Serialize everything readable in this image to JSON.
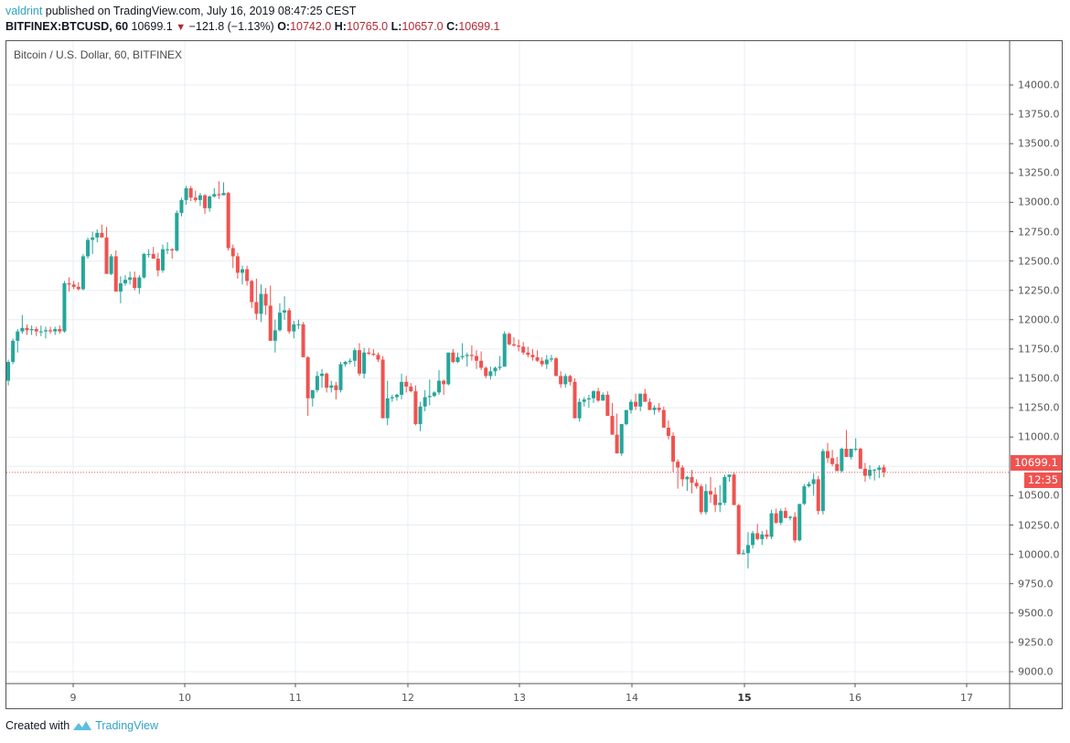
{
  "header": {
    "author": "valdrint",
    "published_text": "published on TradingView.com, July 16, 2019 08:47:25 CEST",
    "symbol": "BITFINEX:BTCUSD, 60",
    "last": "10699.1",
    "change": "−121.8 (−1.13%)",
    "o_label": "O:",
    "o": "10742.0",
    "h_label": "H:",
    "h": "10765.0",
    "l_label": "L:",
    "l": "10657.0",
    "c_label": "C:",
    "c": "10699.1"
  },
  "legend": "Bitcoin / U.S. Dollar, 60, BITFINEX",
  "last_price_tag": "10699.1",
  "countdown_tag": "12:35",
  "footer": {
    "created_with": "Created with",
    "brand": "TradingView"
  },
  "colors": {
    "up": "#26a69a",
    "down": "#ef5350",
    "grid": "#e8eef3",
    "axis": "#555555",
    "brand": "#2fa3c8"
  },
  "chart_data": {
    "type": "candlestick",
    "title": "Bitcoin / U.S. Dollar, 60, BITFINEX",
    "xlabel": "",
    "ylabel": "",
    "ylim": [
      8800,
      14250
    ],
    "grid": true,
    "price_ticks": [
      "14000.0",
      "13750.0",
      "13500.0",
      "13250.0",
      "13000.0",
      "12750.0",
      "12500.0",
      "12250.0",
      "12000.0",
      "11750.0",
      "11500.0",
      "11250.0",
      "11000.0",
      "10500.0",
      "10250.0",
      "10000.0",
      "9750.0",
      "9500.0",
      "9250.0",
      "9000.0"
    ],
    "time_ticks": [
      {
        "label": "9",
        "x": 80
      },
      {
        "label": "10",
        "x": 202
      },
      {
        "label": "11",
        "x": 323
      },
      {
        "label": "12",
        "x": 446
      },
      {
        "label": "13",
        "x": 568
      },
      {
        "label": "14",
        "x": 691
      },
      {
        "label": "15",
        "x": 814,
        "bold": true
      },
      {
        "label": "16",
        "x": 935
      },
      {
        "label": "17",
        "x": 1057
      }
    ],
    "last_price": 10699.1,
    "ohlc": [
      [
        11480,
        11660,
        11440,
        11640
      ],
      [
        11640,
        11840,
        11620,
        11820
      ],
      [
        11820,
        11920,
        11720,
        11900
      ],
      [
        11900,
        12040,
        11880,
        11930
      ],
      [
        11930,
        11960,
        11870,
        11910
      ],
      [
        11910,
        11950,
        11870,
        11920
      ],
      [
        11920,
        11940,
        11860,
        11900
      ],
      [
        11900,
        11950,
        11860,
        11900
      ],
      [
        11900,
        11940,
        11840,
        11910
      ],
      [
        11910,
        11940,
        11880,
        11900
      ],
      [
        11900,
        11940,
        11870,
        11920
      ],
      [
        11920,
        11950,
        11880,
        11900
      ],
      [
        11900,
        12330,
        11890,
        12310
      ],
      [
        12310,
        12360,
        12240,
        12300
      ],
      [
        12300,
        12330,
        12260,
        12280
      ],
      [
        12280,
        12320,
        12250,
        12260
      ],
      [
        12260,
        12560,
        12250,
        12540
      ],
      [
        12540,
        12700,
        12520,
        12680
      ],
      [
        12680,
        12750,
        12560,
        12700
      ],
      [
        12700,
        12770,
        12660,
        12740
      ],
      [
        12740,
        12810,
        12710,
        12700
      ],
      [
        12700,
        12790,
        12440,
        12390
      ],
      [
        12390,
        12560,
        12380,
        12540
      ],
      [
        12540,
        12590,
        12270,
        12240
      ],
      [
        12240,
        12370,
        12140,
        12310
      ],
      [
        12310,
        12380,
        12290,
        12340
      ],
      [
        12340,
        12410,
        12300,
        12360
      ],
      [
        12360,
        12410,
        12250,
        12270
      ],
      [
        12270,
        12380,
        12220,
        12360
      ],
      [
        12360,
        12570,
        12350,
        12560
      ],
      [
        12560,
        12600,
        12530,
        12560
      ],
      [
        12560,
        12620,
        12520,
        12520
      ],
      [
        12520,
        12570,
        12370,
        12420
      ],
      [
        12420,
        12640,
        12400,
        12600
      ],
      [
        12600,
        12660,
        12560,
        12600
      ],
      [
        12600,
        12610,
        12520,
        12590
      ],
      [
        12590,
        12930,
        12580,
        12910
      ],
      [
        12910,
        13040,
        12880,
        13020
      ],
      [
        13020,
        13140,
        12980,
        13120
      ],
      [
        13120,
        13140,
        13010,
        13040
      ],
      [
        13040,
        13100,
        13000,
        13020
      ],
      [
        13020,
        13080,
        12970,
        13060
      ],
      [
        13060,
        13070,
        12900,
        12950
      ],
      [
        12950,
        13060,
        12920,
        13050
      ],
      [
        13050,
        13120,
        13040,
        13070
      ],
      [
        13070,
        13180,
        13030,
        13060
      ],
      [
        13060,
        13170,
        13060,
        13080
      ],
      [
        13080,
        13090,
        12590,
        12610
      ],
      [
        12610,
        12640,
        12440,
        12540
      ],
      [
        12540,
        12570,
        12350,
        12400
      ],
      [
        12400,
        12460,
        12300,
        12430
      ],
      [
        12430,
        12460,
        12290,
        12330
      ],
      [
        12330,
        12340,
        12100,
        12150
      ],
      [
        12150,
        12350,
        12000,
        12050
      ],
      [
        12050,
        12300,
        11980,
        12220
      ],
      [
        12220,
        12270,
        12040,
        12120
      ],
      [
        12120,
        12290,
        11880,
        11820
      ],
      [
        11820,
        12000,
        11720,
        11910
      ],
      [
        11910,
        12140,
        11900,
        12060
      ],
      [
        12060,
        12200,
        12000,
        12080
      ],
      [
        12080,
        12100,
        11880,
        11900
      ],
      [
        11900,
        11990,
        11840,
        11960
      ],
      [
        11960,
        12000,
        11920,
        11960
      ],
      [
        11960,
        11980,
        11730,
        11680
      ],
      [
        11680,
        11690,
        11180,
        11330
      ],
      [
        11330,
        11400,
        11260,
        11400
      ],
      [
        11400,
        11560,
        11380,
        11520
      ],
      [
        11520,
        11580,
        11420,
        11540
      ],
      [
        11540,
        11550,
        11380,
        11420
      ],
      [
        11420,
        11480,
        11380,
        11440
      ],
      [
        11440,
        11470,
        11320,
        11400
      ],
      [
        11400,
        11640,
        11380,
        11620
      ],
      [
        11620,
        11650,
        11600,
        11640
      ],
      [
        11640,
        11670,
        11620,
        11650
      ],
      [
        11650,
        11760,
        11600,
        11740
      ],
      [
        11740,
        11800,
        11520,
        11540
      ],
      [
        11540,
        11760,
        11500,
        11720
      ],
      [
        11720,
        11760,
        11700,
        11710
      ],
      [
        11710,
        11750,
        11690,
        11700
      ],
      [
        11700,
        11720,
        11640,
        11660
      ],
      [
        11660,
        11690,
        11380,
        11160
      ],
      [
        11160,
        11480,
        11100,
        11330
      ],
      [
        11330,
        11360,
        11300,
        11340
      ],
      [
        11340,
        11370,
        11310,
        11360
      ],
      [
        11360,
        11540,
        11320,
        11470
      ],
      [
        11470,
        11520,
        11380,
        11430
      ],
      [
        11430,
        11460,
        11380,
        11390
      ],
      [
        11390,
        11440,
        11100,
        11110
      ],
      [
        11110,
        11300,
        11050,
        11260
      ],
      [
        11260,
        11400,
        11220,
        11340
      ],
      [
        11340,
        11490,
        11270,
        11350
      ],
      [
        11350,
        11390,
        11340,
        11380
      ],
      [
        11380,
        11570,
        11360,
        11480
      ],
      [
        11480,
        11490,
        11360,
        11450
      ],
      [
        11450,
        11610,
        11440,
        11720
      ],
      [
        11720,
        11750,
        11630,
        11640
      ],
      [
        11640,
        11720,
        11630,
        11680
      ],
      [
        11680,
        11800,
        11660,
        11690
      ],
      [
        11690,
        11720,
        11600,
        11700
      ],
      [
        11700,
        11780,
        11650,
        11690
      ],
      [
        11690,
        11740,
        11580,
        11650
      ],
      [
        11650,
        11730,
        11570,
        11590
      ],
      [
        11590,
        11600,
        11500,
        11520
      ],
      [
        11520,
        11600,
        11490,
        11560
      ],
      [
        11560,
        11600,
        11520,
        11590
      ],
      [
        11590,
        11690,
        11570,
        11600
      ],
      [
        11600,
        11900,
        11600,
        11880
      ],
      [
        11880,
        11890,
        11780,
        11790
      ],
      [
        11790,
        11850,
        11770,
        11780
      ],
      [
        11780,
        11830,
        11730,
        11770
      ],
      [
        11770,
        11810,
        11700,
        11720
      ],
      [
        11720,
        11770,
        11680,
        11700
      ],
      [
        11700,
        11750,
        11650,
        11680
      ],
      [
        11680,
        11740,
        11640,
        11650
      ],
      [
        11650,
        11680,
        11600,
        11620
      ],
      [
        11620,
        11700,
        11580,
        11660
      ],
      [
        11660,
        11700,
        11640,
        11670
      ],
      [
        11670,
        11680,
        11520,
        11520
      ],
      [
        11520,
        11560,
        11420,
        11450
      ],
      [
        11450,
        11540,
        11420,
        11520
      ],
      [
        11520,
        11530,
        11440,
        11470
      ],
      [
        11470,
        11500,
        11160,
        11160
      ],
      [
        11160,
        11330,
        11130,
        11300
      ],
      [
        11300,
        11340,
        11260,
        11320
      ],
      [
        11320,
        11360,
        11250,
        11330
      ],
      [
        11330,
        11400,
        11290,
        11390
      ],
      [
        11390,
        11420,
        11300,
        11310
      ],
      [
        11310,
        11380,
        11310,
        11360
      ],
      [
        11360,
        11390,
        11180,
        11180
      ],
      [
        11180,
        11290,
        11060,
        11020
      ],
      [
        11020,
        11200,
        10950,
        10860
      ],
      [
        10860,
        11110,
        10840,
        11110
      ],
      [
        11110,
        11230,
        11100,
        11230
      ],
      [
        11230,
        11320,
        11200,
        11300
      ],
      [
        11300,
        11370,
        11230,
        11260
      ],
      [
        11260,
        11360,
        11220,
        11370
      ],
      [
        11370,
        11410,
        11340,
        11300
      ],
      [
        11300,
        11330,
        11240,
        11230
      ],
      [
        11230,
        11270,
        11190,
        11250
      ],
      [
        11250,
        11290,
        11210,
        11230
      ],
      [
        11230,
        11260,
        11090,
        11080
      ],
      [
        11080,
        11140,
        10980,
        11010
      ],
      [
        11010,
        11040,
        10700,
        10790
      ],
      [
        10790,
        10810,
        10560,
        10740
      ],
      [
        10740,
        10760,
        10580,
        10640
      ],
      [
        10640,
        10670,
        10540,
        10660
      ],
      [
        10660,
        10720,
        10520,
        10610
      ],
      [
        10610,
        10640,
        10560,
        10580
      ],
      [
        10580,
        10600,
        10340,
        10360
      ],
      [
        10360,
        10600,
        10340,
        10540
      ],
      [
        10540,
        10660,
        10440,
        10510
      ],
      [
        10510,
        10570,
        10360,
        10420
      ],
      [
        10420,
        10590,
        10360,
        10440
      ],
      [
        10440,
        10680,
        10420,
        10660
      ],
      [
        10660,
        10680,
        10620,
        10680
      ],
      [
        10680,
        10700,
        10440,
        10420
      ],
      [
        10420,
        10430,
        10170,
        10000
      ],
      [
        10000,
        10040,
        10000,
        10010
      ],
      [
        10010,
        10190,
        9880,
        10080
      ],
      [
        10080,
        10200,
        10050,
        10180
      ],
      [
        10180,
        10260,
        10120,
        10130
      ],
      [
        10130,
        10200,
        10080,
        10170
      ],
      [
        10170,
        10210,
        10130,
        10150
      ],
      [
        10150,
        10380,
        10130,
        10350
      ],
      [
        10350,
        10390,
        10260,
        10270
      ],
      [
        10270,
        10390,
        10250,
        10370
      ],
      [
        10370,
        10400,
        10340,
        10310
      ],
      [
        10310,
        10330,
        10290,
        10320
      ],
      [
        10320,
        10360,
        10100,
        10120
      ],
      [
        10120,
        10430,
        10110,
        10430
      ],
      [
        10430,
        10600,
        10420,
        10580
      ],
      [
        10580,
        10620,
        10570,
        10600
      ],
      [
        10600,
        10690,
        10500,
        10640
      ],
      [
        10640,
        10670,
        10340,
        10370
      ],
      [
        10370,
        10900,
        10340,
        10880
      ],
      [
        10880,
        10950,
        10780,
        10820
      ],
      [
        10820,
        10890,
        10750,
        10770
      ],
      [
        10770,
        10830,
        10710,
        10710
      ],
      [
        10710,
        10910,
        10700,
        10900
      ],
      [
        10900,
        11060,
        10850,
        10830
      ],
      [
        10830,
        10900,
        10810,
        10900
      ],
      [
        10900,
        10990,
        10880,
        10900
      ],
      [
        10900,
        10910,
        10730,
        10730
      ],
      [
        10730,
        10780,
        10620,
        10670
      ],
      [
        10670,
        10760,
        10640,
        10720
      ],
      [
        10720,
        10730,
        10630,
        10720
      ],
      [
        10720,
        10760,
        10650,
        10740
      ],
      [
        10742,
        10765,
        10657,
        10699
      ]
    ]
  }
}
